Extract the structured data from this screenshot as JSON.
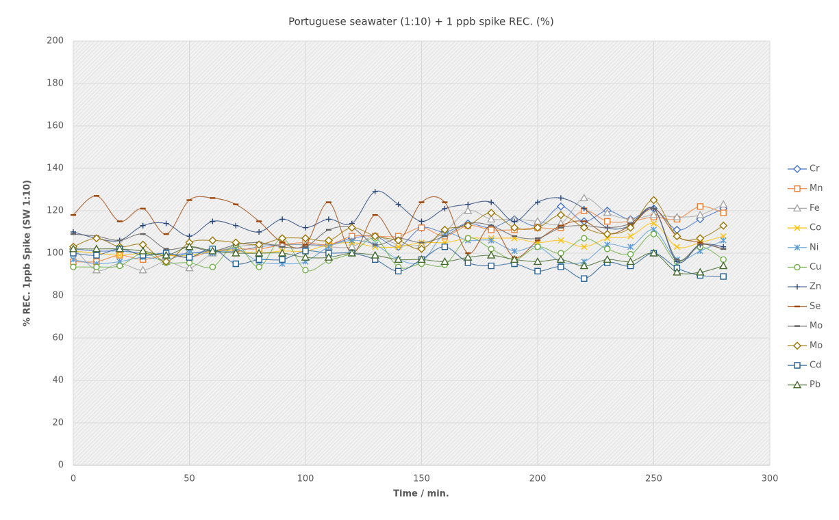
{
  "chart_data": {
    "type": "line",
    "title": "Portuguese seawater (1:10) + 1 ppb spike REC. (%)",
    "x_label": "Time / min.",
    "y_label": "% REC. 1ppb Spike (SW 1:10)",
    "x": [
      0,
      10,
      20,
      30,
      40,
      50,
      60,
      70,
      80,
      90,
      100,
      110,
      120,
      130,
      140,
      150,
      160,
      170,
      180,
      190,
      200,
      210,
      220,
      230,
      240,
      250,
      260,
      270,
      280
    ],
    "xlim": [
      0,
      300
    ],
    "xticks": [
      0,
      50,
      100,
      150,
      200,
      250,
      300
    ],
    "ylim": [
      0,
      200
    ],
    "yticks": [
      0,
      20,
      40,
      60,
      80,
      100,
      120,
      140,
      160,
      180,
      200
    ],
    "grid": true,
    "smooth": true,
    "legend": "right",
    "series": [
      {
        "name": "Cr",
        "color": "#4472c4",
        "marker": "diamond",
        "values": [
          102,
          101,
          101,
          100,
          99,
          100,
          101,
          101,
          103,
          104,
          104,
          104,
          107,
          108,
          103,
          112,
          110,
          114,
          112,
          116,
          113,
          122,
          115,
          120,
          116,
          121,
          111,
          116,
          121
        ]
      },
      {
        "name": "Mn",
        "color": "#ed7d31",
        "marker": "square",
        "values": [
          96,
          96,
          99,
          97,
          99,
          98,
          101,
          102,
          102,
          104,
          105,
          104,
          108,
          108,
          108,
          112,
          108,
          113,
          111,
          111,
          112,
          112,
          120,
          115,
          115,
          117,
          116,
          122,
          119
        ]
      },
      {
        "name": "Fe",
        "color": "#a5a5a5",
        "marker": "triangle",
        "values": [
          103,
          92,
          95,
          92,
          96,
          93,
          100,
          103,
          104,
          104,
          104,
          103,
          103,
          108,
          104,
          104,
          110,
          120,
          116,
          116,
          115,
          114,
          126,
          119,
          116,
          118,
          117,
          118,
          123
        ]
      },
      {
        "name": "Co",
        "color": "#ffc000",
        "marker": "x",
        "values": [
          101,
          100,
          99,
          100,
          99,
          99,
          101,
          101,
          100,
          101,
          101,
          104,
          105,
          103,
          103,
          105,
          105,
          107,
          107,
          107,
          105,
          106,
          103,
          107,
          108,
          114,
          103,
          105,
          108
        ]
      },
      {
        "name": "Ni",
        "color": "#5b9bd5",
        "marker": "star",
        "values": [
          97,
          95,
          96,
          98,
          97,
          100,
          100,
          102,
          96,
          95,
          96,
          103,
          106,
          104,
          97,
          96,
          109,
          106,
          106,
          101,
          103,
          96,
          96,
          104,
          103,
          111,
          97,
          101,
          106
        ]
      },
      {
        "name": "Cu",
        "color": "#70ad47",
        "marker": "circle",
        "values": [
          93.5,
          93.5,
          94,
          100,
          95.5,
          95.5,
          93.5,
          104,
          93.5,
          107,
          92,
          96.5,
          100,
          107,
          93.5,
          95,
          94.5,
          107,
          102,
          97,
          103,
          100,
          107,
          102,
          99.5,
          109,
          96,
          103,
          97
        ]
      },
      {
        "name": "Zn",
        "color": "#264478",
        "marker": "plus",
        "values": [
          110,
          107,
          106,
          113,
          114,
          108,
          115,
          113,
          110,
          116,
          112,
          116,
          114,
          129,
          123,
          115,
          121,
          123,
          124,
          115,
          124,
          126,
          121,
          112,
          113,
          121,
          96,
          104,
          103
        ]
      },
      {
        "name": "Se",
        "color": "#9e480e",
        "marker": "dash",
        "values": [
          118,
          127,
          115,
          121,
          109,
          125,
          126,
          123,
          115,
          105,
          104,
          124,
          100,
          118,
          106,
          124,
          124,
          100,
          113,
          98,
          106,
          113,
          115,
          109,
          113,
          121,
          108,
          105,
          102
        ]
      },
      {
        "name": "Mo",
        "color": "#636363",
        "marker": "dash",
        "values": [
          109,
          108,
          106,
          109,
          102,
          103,
          101,
          104,
          105,
          103,
          103,
          111,
          112,
          104,
          107,
          105,
          108,
          114,
          113,
          108,
          107,
          112,
          113,
          112,
          114,
          121,
          97,
          104,
          102
        ]
      },
      {
        "name": "Mo",
        "color": "#997300",
        "marker": "diamond",
        "values": [
          103,
          107,
          103,
          104,
          96,
          105,
          106,
          105,
          104,
          107,
          107,
          106,
          112,
          108,
          106,
          102,
          111,
          113,
          119,
          112,
          112,
          118,
          112,
          109,
          112,
          125,
          108,
          107,
          113
        ]
      },
      {
        "name": "Cd",
        "color": "#255e91",
        "marker": "square",
        "values": [
          100,
          99,
          102,
          99,
          100,
          98,
          102,
          95,
          97,
          97,
          101,
          100,
          100,
          97,
          91.5,
          97,
          103,
          95.5,
          94,
          95,
          91.5,
          93.5,
          88,
          95.5,
          94,
          100,
          93,
          89.5,
          89
        ]
      },
      {
        "name": "Pb",
        "color": "#43682b",
        "marker": "triangle",
        "values": [
          102,
          102,
          102,
          101,
          99,
          103,
          101,
          100,
          100,
          100,
          98,
          98,
          100,
          99,
          97,
          97,
          96,
          98,
          99,
          97,
          96,
          97,
          94,
          97,
          96,
          100,
          91,
          91,
          94
        ]
      }
    ]
  }
}
